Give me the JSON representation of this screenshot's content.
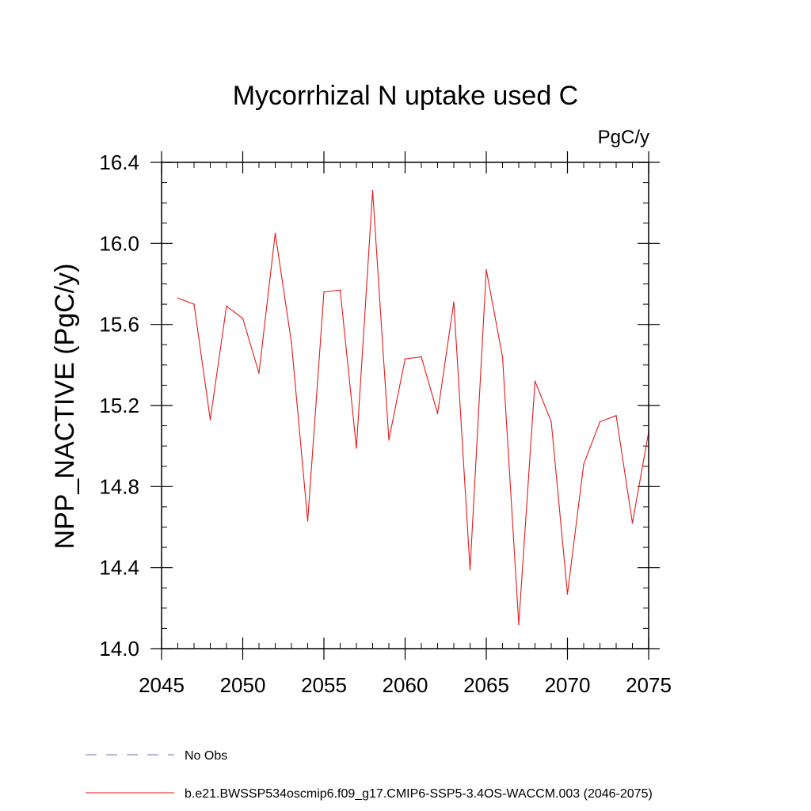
{
  "chart_data": {
    "type": "line",
    "title": "Mycorrhizal N uptake used C",
    "units_label": "PgC/y",
    "ylabel": "NPP_NACTIVE  (PgC/y)",
    "xlabel": "",
    "xlim": [
      2045,
      2075
    ],
    "ylim": [
      14.0,
      16.4
    ],
    "x_ticks": [
      2045,
      2050,
      2055,
      2060,
      2065,
      2070,
      2075
    ],
    "x_tick_labels": [
      "2045",
      "2050",
      "2055",
      "2060",
      "2065",
      "2070",
      "2075"
    ],
    "y_ticks": [
      14.0,
      14.4,
      14.8,
      15.2,
      15.6,
      16.0,
      16.4
    ],
    "y_tick_labels": [
      "14.0",
      "14.4",
      "14.8",
      "15.2",
      "15.6",
      "16.0",
      "16.4"
    ],
    "y_minor_step": 0.1,
    "x_minor_step": 1,
    "grid": false,
    "legend_position": "bottom",
    "series": [
      {
        "name": "b.e21.BWSSP534oscmip6.f09_g17.CMIP6-SSP5-3.4OS-WACCM.003 (2046-2075)",
        "color": "#e31a1c",
        "style": "solid",
        "x": [
          2046,
          2047,
          2048,
          2049,
          2050,
          2051,
          2052,
          2053,
          2054,
          2055,
          2056,
          2057,
          2058,
          2059,
          2060,
          2061,
          2062,
          2063,
          2064,
          2065,
          2066,
          2067,
          2068,
          2069,
          2070,
          2071,
          2072,
          2073,
          2074,
          2075
        ],
        "values": [
          15.73,
          15.7,
          15.13,
          15.69,
          15.63,
          15.36,
          16.05,
          15.51,
          14.63,
          15.76,
          15.77,
          14.99,
          16.26,
          15.03,
          15.43,
          15.44,
          15.16,
          15.71,
          14.39,
          15.87,
          15.44,
          14.12,
          15.32,
          15.12,
          14.27,
          14.91,
          15.12,
          15.15,
          14.62,
          15.07
        ]
      }
    ],
    "legend": [
      {
        "label": "No Obs",
        "color": "#7b68c8",
        "style": "dashed"
      },
      {
        "label": "b.e21.BWSSP534oscmip6.f09_g17.CMIP6-SSP5-3.4OS-WACCM.003 (2046-2075)",
        "color": "#e31a1c",
        "style": "solid"
      }
    ]
  }
}
